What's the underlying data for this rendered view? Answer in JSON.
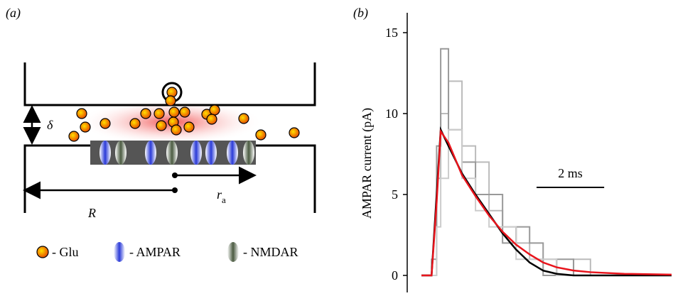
{
  "panel_a": {
    "label": "(a)",
    "delta": "δ",
    "radius_big": "R",
    "radius_small": {
      "main": "r",
      "sub": "a"
    },
    "legend": [
      "- Glu",
      "- AMPAR",
      "- NMDAR"
    ]
  },
  "chart_data": {
    "type": "line",
    "panel_label": "(b)",
    "y_label": "AMPAR current (pA)",
    "ylim": [
      0,
      15
    ],
    "yticks": [
      0,
      5,
      10,
      15
    ],
    "xlim": [
      0,
      7.4
    ],
    "x": [
      0,
      0.3,
      0.45,
      0.57,
      0.8,
      1.2,
      1.6,
      2.0,
      2.4,
      2.8,
      3.2,
      3.6,
      4.0,
      4.5,
      5.0,
      6.0,
      7.4
    ],
    "scale_bar": {
      "value": 2,
      "label": "2 ms"
    },
    "traces": [
      {
        "color": "#bbbbbb",
        "values": [
          0,
          0,
          6,
          10,
          12,
          8,
          7,
          4,
          3,
          2,
          1,
          1,
          0,
          1,
          0,
          0,
          0
        ]
      },
      {
        "color": "#999999",
        "values": [
          0,
          1,
          8,
          14,
          9,
          7,
          5,
          5,
          2,
          3,
          2,
          0,
          1,
          0,
          0,
          0,
          0
        ]
      },
      {
        "color": "#cccccc",
        "values": [
          0,
          0,
          3,
          6,
          9,
          6,
          4,
          3,
          3,
          1,
          1,
          1,
          0,
          0,
          0,
          0,
          0
        ]
      }
    ],
    "series": [
      {
        "color": "#000000",
        "values": [
          0,
          0,
          5,
          9,
          8,
          6.3,
          5,
          3.8,
          2.6,
          1.6,
          0.8,
          0.3,
          0.1,
          0,
          0,
          0,
          0
        ]
      },
      {
        "color": "#e8141c",
        "values": [
          0,
          0,
          4.5,
          8.9,
          8.2,
          6.2,
          4.9,
          3.7,
          2.7,
          1.9,
          1.3,
          0.8,
          0.5,
          0.3,
          0.2,
          0.1,
          0.05
        ]
      }
    ]
  }
}
